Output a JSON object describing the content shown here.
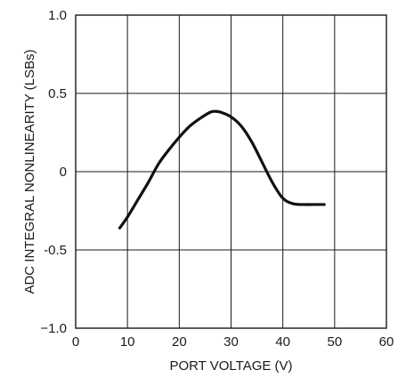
{
  "chart_data": {
    "type": "line",
    "title": "",
    "xlabel": "PORT VOLTAGE (V)",
    "ylabel": "ADC INTEGRAL NONLINEARITY (LSBs)",
    "xlim": [
      0,
      60
    ],
    "ylim": [
      -1.0,
      1.0
    ],
    "x_ticks": [
      0,
      10,
      20,
      30,
      40,
      50,
      60
    ],
    "x_tick_labels": [
      "0",
      "10",
      "20",
      "30",
      "40",
      "50",
      "60"
    ],
    "y_ticks": [
      -1.0,
      -0.5,
      0,
      0.5,
      1.0
    ],
    "y_tick_labels": [
      "−1.0",
      "-0.5",
      "0",
      "0.5",
      "1.0"
    ],
    "grid": true,
    "legend": "none",
    "line_color": "#111111",
    "grid_color": "#1a1a1a",
    "series": [
      {
        "x": [
          8.5,
          10,
          12,
          14,
          16,
          18,
          20,
          22,
          24,
          26,
          27,
          28,
          30,
          32,
          34,
          36,
          38,
          40,
          42,
          44,
          46,
          48
        ],
        "values": [
          -0.36,
          -0.29,
          -0.18,
          -0.07,
          0.05,
          0.14,
          0.22,
          0.29,
          0.34,
          0.38,
          0.385,
          0.38,
          0.35,
          0.29,
          0.19,
          0.06,
          -0.07,
          -0.17,
          -0.205,
          -0.21,
          -0.21,
          -0.21
        ]
      }
    ]
  }
}
